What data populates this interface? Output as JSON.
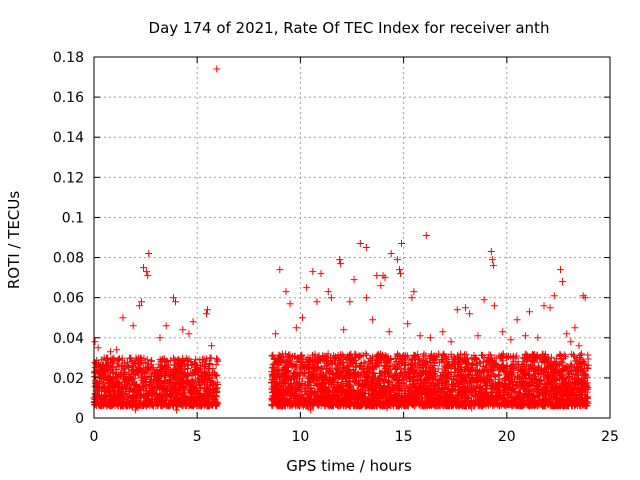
{
  "chart_data": {
    "type": "scatter",
    "title": "Day 174 of 2021, Rate Of TEC Index for receiver anth",
    "xlabel": "GPS time / hours",
    "ylabel": "ROTI / TECUs",
    "xlim": [
      0,
      25
    ],
    "ylim": [
      0,
      0.18
    ],
    "xticks": [
      0,
      5,
      10,
      15,
      20,
      25
    ],
    "xtick_labels": [
      "0",
      "5",
      "10",
      "15",
      "20",
      "25"
    ],
    "yticks": [
      0,
      0.02,
      0.04,
      0.06,
      0.08,
      0.1,
      0.12,
      0.14,
      0.16,
      0.18
    ],
    "ytick_labels": [
      "0",
      "0.02",
      "0.04",
      "0.06",
      "0.08",
      "0.1",
      "0.12",
      "0.14",
      "0.16",
      "0.18"
    ],
    "grid": true,
    "marker": "+",
    "color": "#ff0000",
    "series": [
      {
        "name": "ROTI",
        "points": [
          [
            5.95,
            0.174
          ],
          [
            16.1,
            0.091
          ],
          [
            2.65,
            0.082
          ],
          [
            19.25,
            0.083
          ],
          [
            19.3,
            0.079
          ],
          [
            19.35,
            0.076
          ],
          [
            12.9,
            0.087
          ],
          [
            13.2,
            0.085
          ],
          [
            14.9,
            0.087
          ],
          [
            14.4,
            0.082
          ],
          [
            14.7,
            0.079
          ],
          [
            11.9,
            0.079
          ],
          [
            11.95,
            0.077
          ],
          [
            14.8,
            0.074
          ],
          [
            14.85,
            0.072
          ],
          [
            2.4,
            0.075
          ],
          [
            2.55,
            0.073
          ],
          [
            2.6,
            0.071
          ],
          [
            22.6,
            0.074
          ],
          [
            22.7,
            0.068
          ],
          [
            9.0,
            0.074
          ],
          [
            10.6,
            0.073
          ],
          [
            11.0,
            0.072
          ],
          [
            13.7,
            0.071
          ],
          [
            14.1,
            0.07
          ],
          [
            14.0,
            0.071
          ],
          [
            13.9,
            0.066
          ],
          [
            12.6,
            0.069
          ],
          [
            10.3,
            0.065
          ],
          [
            11.35,
            0.063
          ],
          [
            15.5,
            0.063
          ],
          [
            15.4,
            0.06
          ],
          [
            18.9,
            0.059
          ],
          [
            21.8,
            0.056
          ],
          [
            23.7,
            0.061
          ],
          [
            23.8,
            0.06
          ],
          [
            3.85,
            0.06
          ],
          [
            3.95,
            0.058
          ],
          [
            2.3,
            0.058
          ],
          [
            2.2,
            0.056
          ],
          [
            5.5,
            0.054
          ],
          [
            5.45,
            0.052
          ],
          [
            9.3,
            0.063
          ],
          [
            9.5,
            0.057
          ],
          [
            11.5,
            0.06
          ],
          [
            12.4,
            0.058
          ],
          [
            13.2,
            0.06
          ],
          [
            10.8,
            0.058
          ],
          [
            17.6,
            0.054
          ],
          [
            18.0,
            0.055
          ],
          [
            18.2,
            0.052
          ],
          [
            19.4,
            0.056
          ],
          [
            20.5,
            0.049
          ],
          [
            21.1,
            0.053
          ],
          [
            22.1,
            0.055
          ],
          [
            22.3,
            0.061
          ],
          [
            23.3,
            0.045
          ],
          [
            1.4,
            0.05
          ],
          [
            1.9,
            0.046
          ],
          [
            3.5,
            0.046
          ],
          [
            4.3,
            0.044
          ],
          [
            4.8,
            0.048
          ],
          [
            0.05,
            0.038
          ],
          [
            0.2,
            0.035
          ],
          [
            0.8,
            0.033
          ],
          [
            1.1,
            0.034
          ],
          [
            3.2,
            0.04
          ],
          [
            4.6,
            0.042
          ],
          [
            5.7,
            0.036
          ],
          [
            8.8,
            0.042
          ],
          [
            9.8,
            0.045
          ],
          [
            10.1,
            0.05
          ],
          [
            12.1,
            0.044
          ],
          [
            13.5,
            0.049
          ],
          [
            14.3,
            0.043
          ],
          [
            15.2,
            0.047
          ],
          [
            15.8,
            0.041
          ],
          [
            16.3,
            0.04
          ],
          [
            16.9,
            0.043
          ],
          [
            17.3,
            0.038
          ],
          [
            18.6,
            0.041
          ],
          [
            19.8,
            0.043
          ],
          [
            20.2,
            0.039
          ],
          [
            20.9,
            0.041
          ],
          [
            21.5,
            0.04
          ],
          [
            22.9,
            0.042
          ],
          [
            23.1,
            0.038
          ],
          [
            23.5,
            0.036
          ],
          [
            0.0,
            0.01
          ],
          [
            5.9,
            0.006
          ],
          [
            10.5,
            0.004
          ],
          [
            14.2,
            0.005
          ],
          [
            18.3,
            0.005
          ],
          [
            23.9,
            0.008
          ],
          [
            2.0,
            0.004
          ],
          [
            4.0,
            0.004
          ]
        ]
      }
    ],
    "dense_segments": [
      {
        "x": [
          0.0,
          6.0
        ],
        "y": [
          0.006,
          0.03
        ],
        "density": 1300
      },
      {
        "x": [
          8.6,
          23.95
        ],
        "y": [
          0.006,
          0.032
        ],
        "density": 3600
      }
    ]
  }
}
